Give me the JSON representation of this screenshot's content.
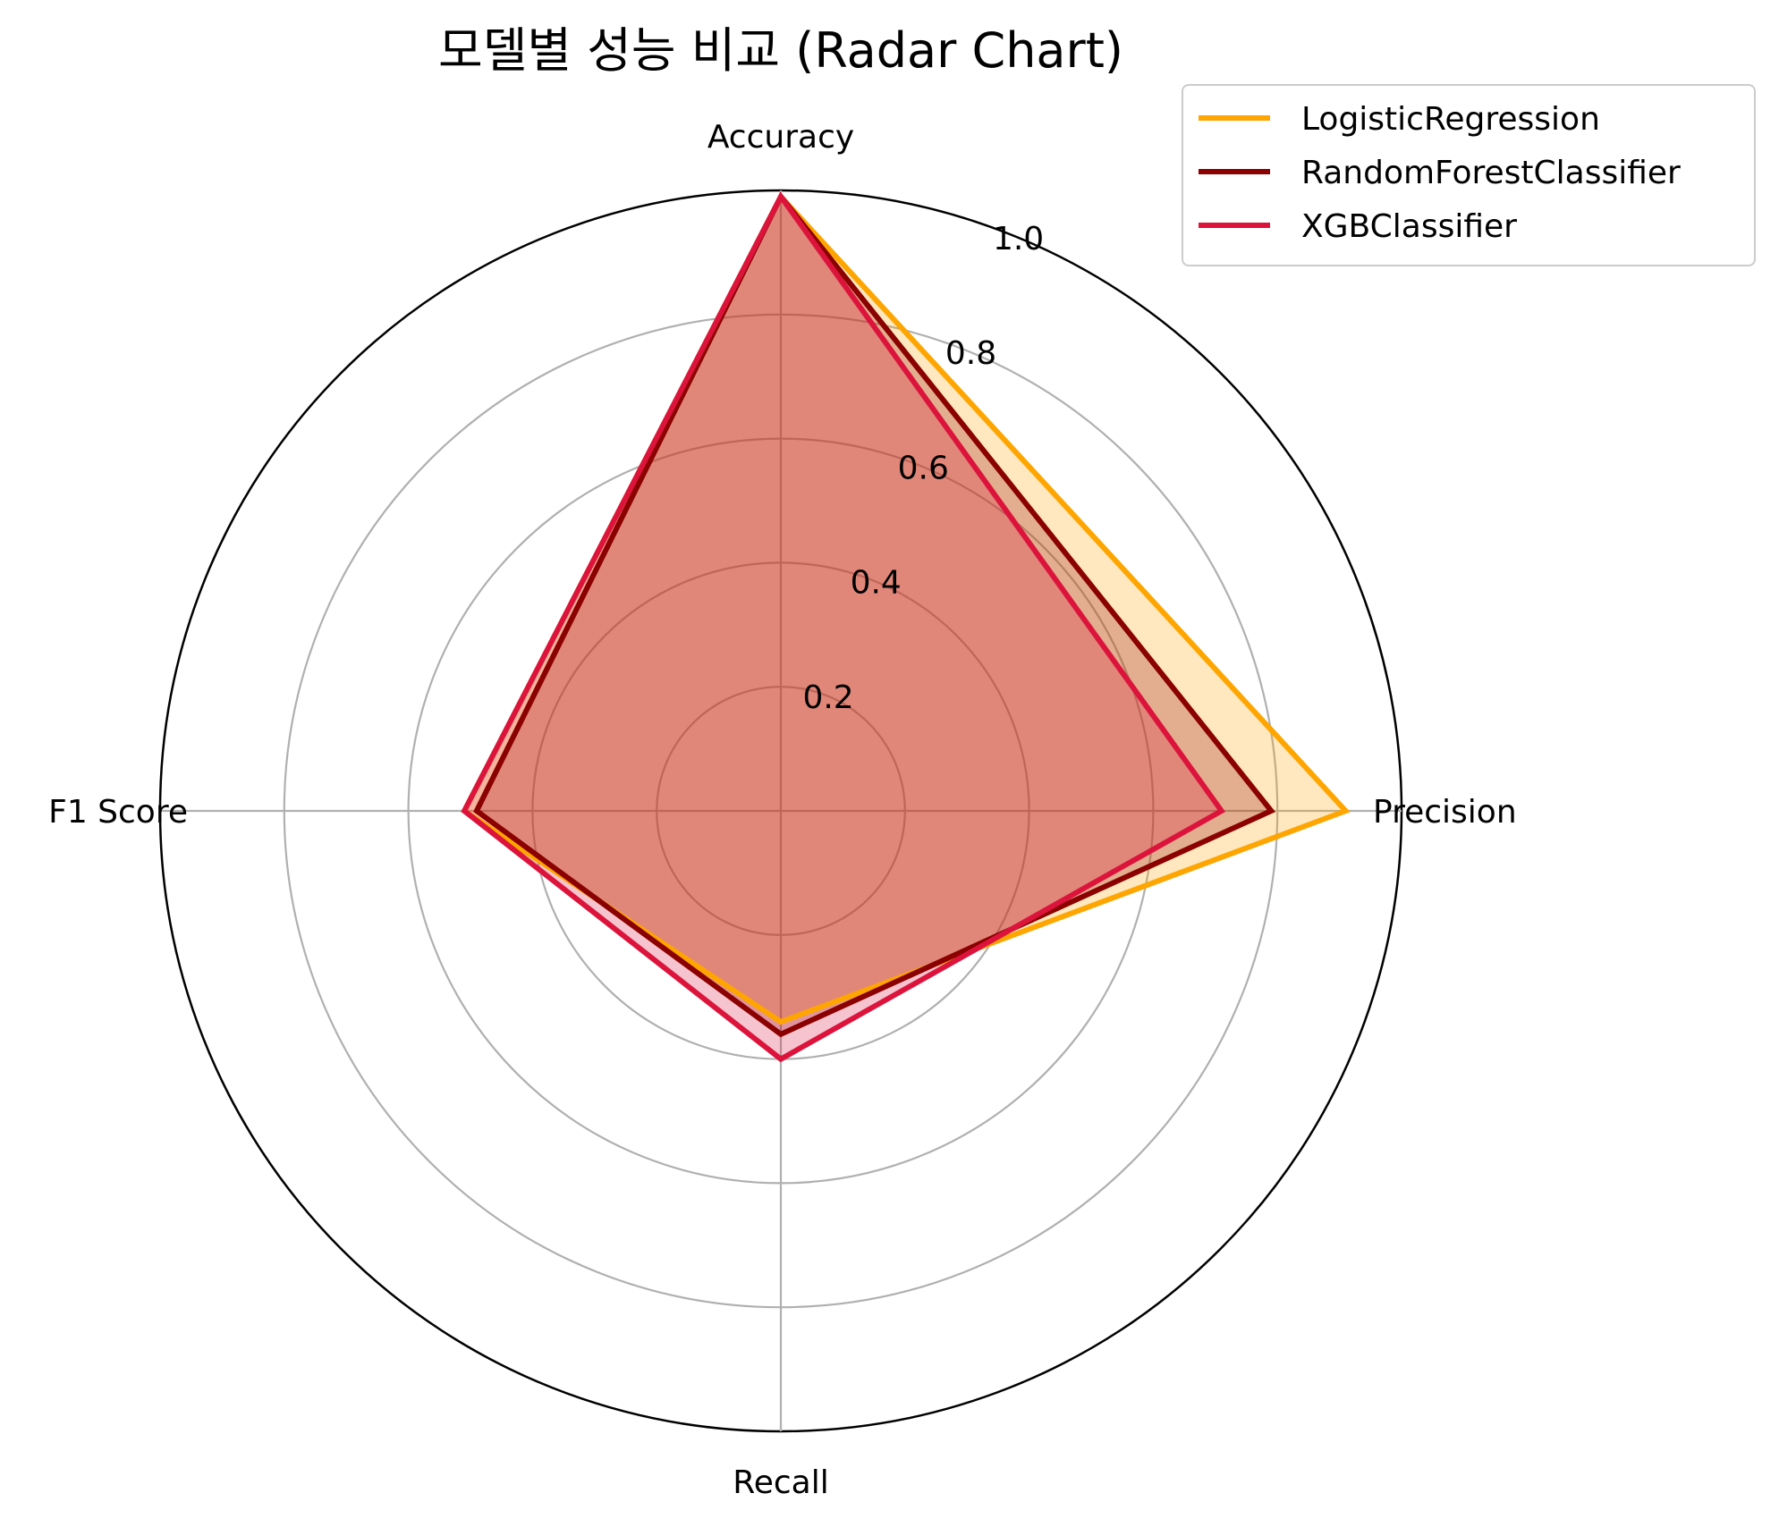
{
  "chart_data": {
    "type": "radar",
    "title": "모델별 성능 비교 (Radar Chart)",
    "axes": [
      "Accuracy",
      "Precision",
      "Recall",
      "F1 Score"
    ],
    "rlim": [
      0,
      1.0
    ],
    "rticks": [
      0.2,
      0.4,
      0.6,
      0.8,
      1.0
    ],
    "rtick_labels": [
      "0.2",
      "0.4",
      "0.6",
      "0.8",
      "1.0"
    ],
    "grid": true,
    "legend_position": "top-right",
    "series": [
      {
        "name": "LogisticRegression",
        "color": "#FFA500",
        "fill_color": "#FFA500",
        "fill_opacity": 0.25,
        "values": [
          0.99,
          0.91,
          0.34,
          0.51
        ]
      },
      {
        "name": "RandomForestClassifier",
        "color": "#8B0000",
        "fill_color": "#8B0000",
        "fill_opacity": 0.25,
        "values": [
          0.99,
          0.79,
          0.36,
          0.49
        ]
      },
      {
        "name": "XGBClassifier",
        "color": "#DC143C",
        "fill_color": "#DC143C",
        "fill_opacity": 0.25,
        "values": [
          0.99,
          0.71,
          0.4,
          0.51
        ]
      }
    ]
  }
}
